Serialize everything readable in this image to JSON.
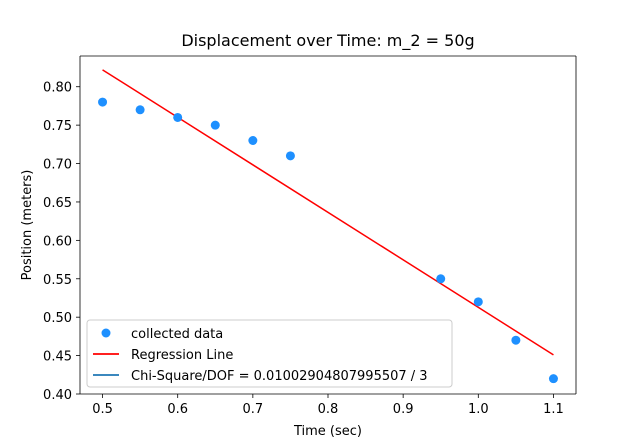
{
  "chart_data": {
    "type": "scatter",
    "title": "Displacement over Time: m_2 = 50g",
    "xlabel": "Time (sec)",
    "ylabel": "Position (meters)",
    "xlim": [
      0.47,
      1.13
    ],
    "ylim": [
      0.4,
      0.84
    ],
    "xticks": [
      0.5,
      0.6,
      0.7,
      0.8,
      0.9,
      1.0,
      1.1
    ],
    "xtick_labels": [
      "0.5",
      "0.6",
      "0.7",
      "0.8",
      "0.9",
      "1.0",
      "1.1"
    ],
    "yticks": [
      0.4,
      0.45,
      0.5,
      0.55,
      0.6,
      0.65,
      0.7,
      0.75,
      0.8
    ],
    "ytick_labels": [
      "0.40",
      "0.45",
      "0.50",
      "0.55",
      "0.60",
      "0.65",
      "0.70",
      "0.75",
      "0.80"
    ],
    "grid": false,
    "legend_position": "bottom-left",
    "series": [
      {
        "name": "collected data",
        "kind": "scatter",
        "color": "#1e90ff",
        "x": [
          0.5,
          0.55,
          0.6,
          0.65,
          0.7,
          0.75,
          0.95,
          1.0,
          1.05,
          1.1
        ],
        "y": [
          0.78,
          0.77,
          0.76,
          0.75,
          0.73,
          0.71,
          0.55,
          0.52,
          0.47,
          0.42
        ]
      },
      {
        "name": "Regression Line",
        "kind": "line",
        "color": "#ff0000",
        "x": [
          0.5,
          1.1
        ],
        "y": [
          0.822,
          0.451
        ]
      },
      {
        "name": "Chi-Square/DOF = 0.01002904807995507 / 3",
        "kind": "legend-only",
        "color": "#1f77b4"
      }
    ]
  }
}
